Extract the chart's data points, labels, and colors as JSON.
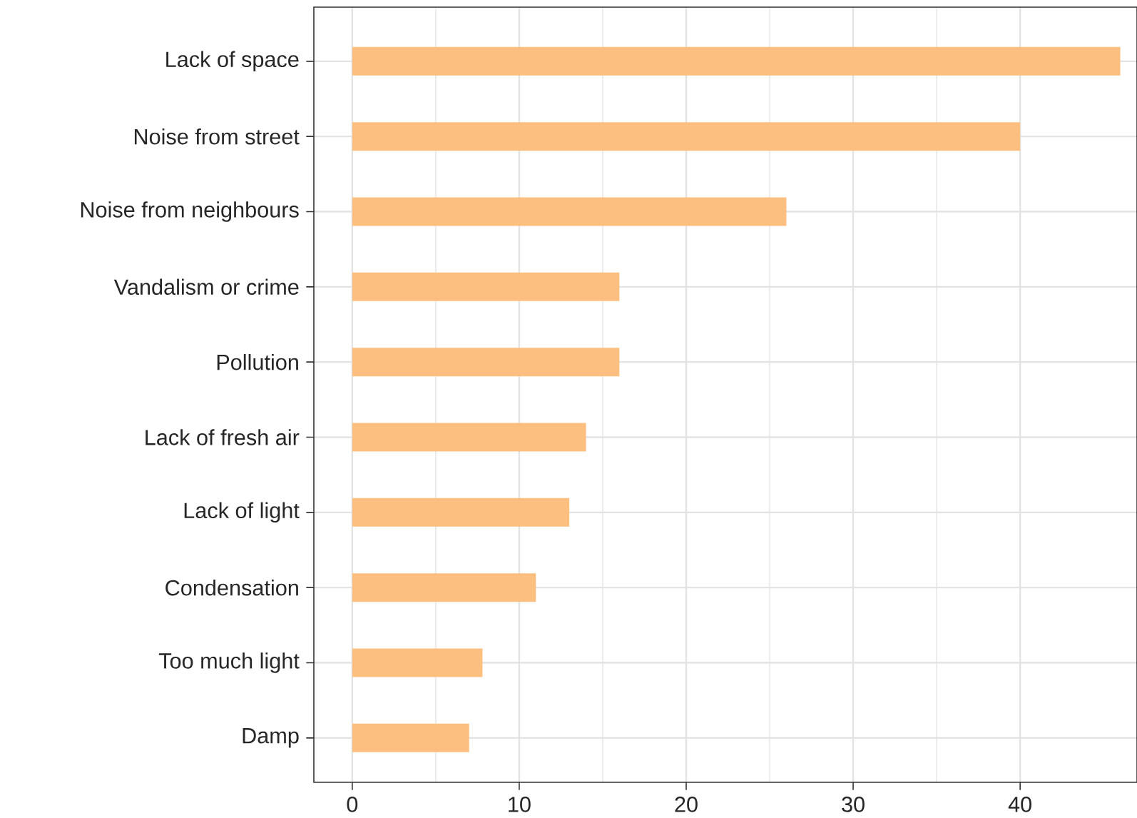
{
  "chart_data": {
    "type": "bar",
    "orientation": "horizontal",
    "categories": [
      "Lack of space",
      "Noise from street",
      "Noise from neighbours",
      "Vandalism or crime",
      "Pollution",
      "Lack of fresh air",
      "Lack of light",
      "Condensation",
      "Too much light",
      "Damp"
    ],
    "values": [
      46,
      40,
      26,
      16,
      16,
      14,
      13,
      11,
      7.8,
      7
    ],
    "color": "#fdbf7f",
    "xlim": [
      -2.3,
      47
    ],
    "xticks": [
      0,
      10,
      20,
      30,
      40
    ],
    "grid": true
  }
}
